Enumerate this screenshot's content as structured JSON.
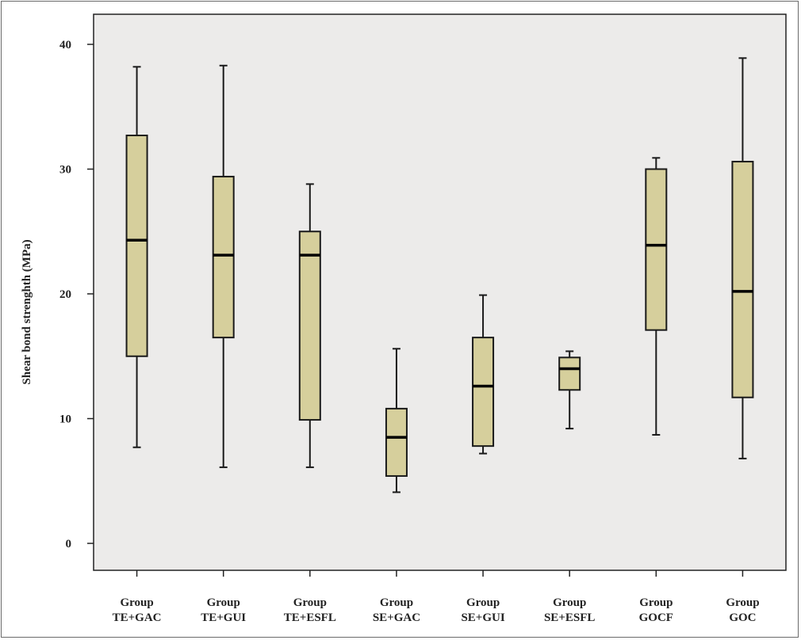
{
  "chart_data": {
    "type": "boxplot",
    "title": "",
    "xlabel": "",
    "ylabel": "Shear bond strenghth (MPa)",
    "ylim": [
      -2,
      42
    ],
    "yticks": [
      0,
      10,
      20,
      30,
      40
    ],
    "categories": [
      [
        "Group",
        "TE+GAC"
      ],
      [
        "Group",
        "TE+GUI"
      ],
      [
        "Group",
        "TE+ESFL"
      ],
      [
        "Group",
        "SE+GAC"
      ],
      [
        "Group",
        "SE+GUI"
      ],
      [
        "Group",
        "SE+ESFL"
      ],
      [
        "Group",
        "GOCF"
      ],
      [
        "Group",
        "GOC"
      ]
    ],
    "boxes": [
      {
        "min": 7.7,
        "q1": 15.0,
        "median": 24.3,
        "q3": 32.7,
        "max": 38.2
      },
      {
        "min": 6.1,
        "q1": 16.5,
        "median": 23.1,
        "q3": 29.4,
        "max": 38.3
      },
      {
        "min": 6.1,
        "q1": 9.9,
        "median": 23.1,
        "q3": 25.0,
        "max": 28.8
      },
      {
        "min": 4.1,
        "q1": 5.4,
        "median": 8.5,
        "q3": 10.8,
        "max": 15.6
      },
      {
        "min": 7.2,
        "q1": 7.8,
        "median": 12.6,
        "q3": 16.5,
        "max": 19.9
      },
      {
        "min": 9.2,
        "q1": 12.3,
        "median": 14.0,
        "q3": 14.9,
        "max": 15.4
      },
      {
        "min": 8.7,
        "q1": 17.1,
        "median": 23.9,
        "q3": 30.0,
        "max": 30.9
      },
      {
        "min": 6.8,
        "q1": 11.7,
        "median": 20.2,
        "q3": 30.6,
        "max": 38.9
      }
    ],
    "grid": false,
    "colors": {
      "plot_background": "#ecebea",
      "box_fill": "#d6cf9c",
      "stroke": "#1a1a1a"
    }
  }
}
